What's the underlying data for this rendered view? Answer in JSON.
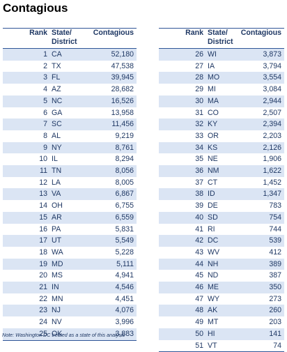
{
  "title": "Contagious",
  "columns": {
    "rank": "Rank",
    "state": "State/ District",
    "value": "Contagious"
  },
  "left_rows": [
    [
      "1",
      "CA",
      "52,180"
    ],
    [
      "2",
      "TX",
      "47,538"
    ],
    [
      "3",
      "FL",
      "39,945"
    ],
    [
      "4",
      "AZ",
      "28,682"
    ],
    [
      "5",
      "NC",
      "16,526"
    ],
    [
      "6",
      "GA",
      "13,958"
    ],
    [
      "7",
      "SC",
      "11,456"
    ],
    [
      "8",
      "AL",
      "9,219"
    ],
    [
      "9",
      "NY",
      "8,761"
    ],
    [
      "10",
      "IL",
      "8,294"
    ],
    [
      "11",
      "TN",
      "8,056"
    ],
    [
      "12",
      "LA",
      "8,005"
    ],
    [
      "13",
      "VA",
      "6,867"
    ],
    [
      "14",
      "OH",
      "6,755"
    ],
    [
      "15",
      "AR",
      "6,559"
    ],
    [
      "16",
      "PA",
      "5,831"
    ],
    [
      "17",
      "UT",
      "5,549"
    ],
    [
      "18",
      "WA",
      "5,228"
    ],
    [
      "19",
      "MD",
      "5,111"
    ],
    [
      "20",
      "MS",
      "4,941"
    ],
    [
      "21",
      "IN",
      "4,546"
    ],
    [
      "22",
      "MN",
      "4,451"
    ],
    [
      "23",
      "NJ",
      "4,076"
    ],
    [
      "24",
      "NV",
      "3,996"
    ],
    [
      "25",
      "OK",
      "3,883"
    ]
  ],
  "right_rows": [
    [
      "26",
      "WI",
      "3,873"
    ],
    [
      "27",
      "IA",
      "3,794"
    ],
    [
      "28",
      "MO",
      "3,554"
    ],
    [
      "29",
      "MI",
      "3,084"
    ],
    [
      "30",
      "MA",
      "2,944"
    ],
    [
      "31",
      "CO",
      "2,507"
    ],
    [
      "32",
      "KY",
      "2,394"
    ],
    [
      "33",
      "OR",
      "2,203"
    ],
    [
      "34",
      "KS",
      "2,126"
    ],
    [
      "35",
      "NE",
      "1,906"
    ],
    [
      "36",
      "NM",
      "1,622"
    ],
    [
      "37",
      "CT",
      "1,452"
    ],
    [
      "38",
      "ID",
      "1,347"
    ],
    [
      "39",
      "DE",
      "783"
    ],
    [
      "40",
      "SD",
      "754"
    ],
    [
      "41",
      "RI",
      "744"
    ],
    [
      "42",
      "DC",
      "539"
    ],
    [
      "43",
      "WV",
      "412"
    ],
    [
      "44",
      "NH",
      "389"
    ],
    [
      "45",
      "ND",
      "387"
    ],
    [
      "46",
      "ME",
      "350"
    ],
    [
      "47",
      "WY",
      "273"
    ],
    [
      "48",
      "AK",
      "260"
    ],
    [
      "49",
      "MT",
      "203"
    ],
    [
      "50",
      "HI",
      "141"
    ],
    [
      "51",
      "VT",
      "74"
    ]
  ],
  "note": "Note: Washington DC treated as a state of this analysis",
  "colors": {
    "band": "#dbe5f4",
    "text": "#1f3864",
    "rule": "#2f5597"
  }
}
